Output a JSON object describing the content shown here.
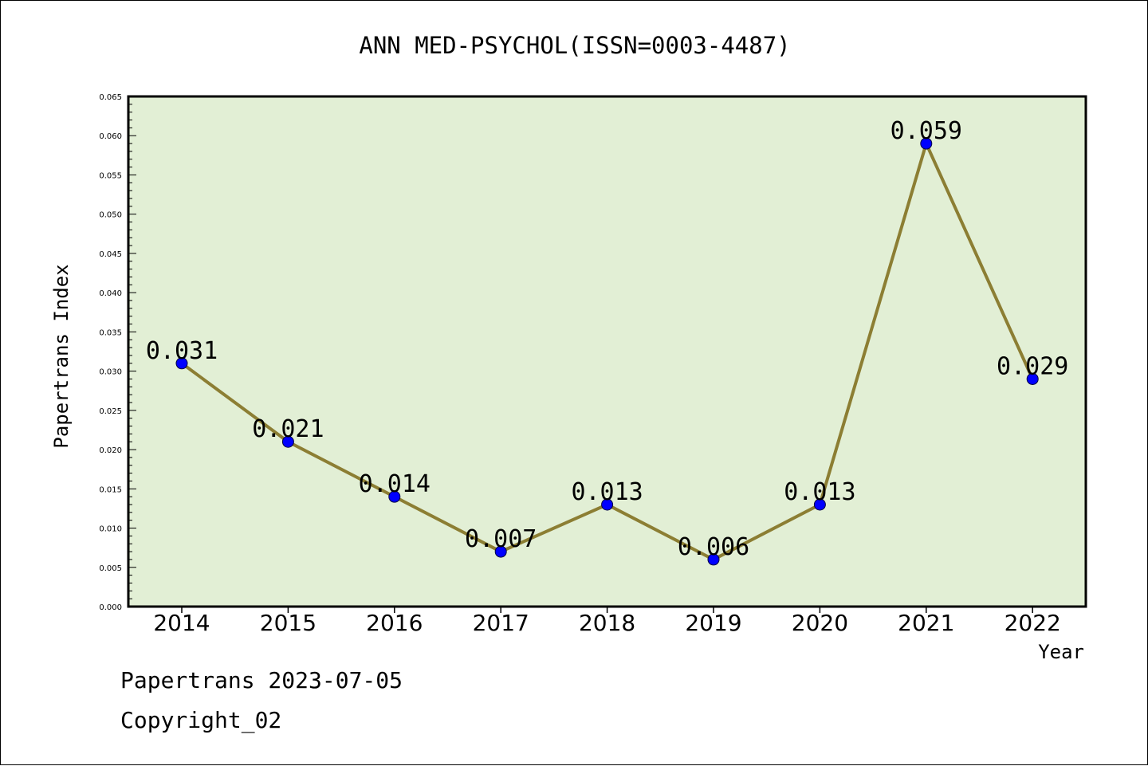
{
  "chart_data": {
    "type": "line",
    "title": "ANN MED-PSYCHOL(ISSN=0003-4487)",
    "xlabel": "Year",
    "ylabel": "Papertrans Index",
    "categories": [
      "2014",
      "2015",
      "2016",
      "2017",
      "2018",
      "2019",
      "2020",
      "2021",
      "2022"
    ],
    "values": [
      0.031,
      0.021,
      0.014,
      0.007,
      0.013,
      0.006,
      0.013,
      0.059,
      0.029
    ],
    "data_labels": [
      "0.031",
      "0.021",
      "0.014",
      "0.007",
      "0.013",
      "0.006",
      "0.013",
      "0.059",
      "0.029"
    ],
    "ylim": [
      0,
      0.065
    ],
    "yticks": [
      "0.000",
      "0.005",
      "0.010",
      "0.015",
      "0.020",
      "0.025",
      "0.030",
      "0.035",
      "0.040",
      "0.045",
      "0.050",
      "0.055",
      "0.060",
      "0.065"
    ],
    "grid": false,
    "legend": "none",
    "colors": {
      "plot_background": "#e2efd5",
      "line": "#8c7e33",
      "marker": "#0000ff",
      "axes": "#000000"
    }
  },
  "footer": {
    "date_text": "Papertrans 2023-07-05",
    "copyright_text": "Copyright_02"
  }
}
